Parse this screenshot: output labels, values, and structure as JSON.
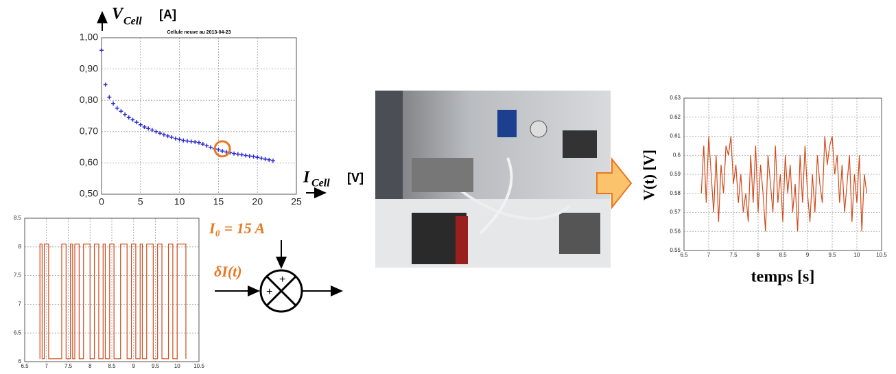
{
  "chart_data": [
    {
      "type": "scatter",
      "subtitle": "Cellule neuve au 2013-04-23",
      "ylabel": "V",
      "ylabel_subscript": "Cell",
      "ylabel_unit": "[A]",
      "xlabel": "I",
      "xlabel_subscript": "Cell",
      "xlabel_unit": "[V]",
      "color": "#2a2ad0",
      "x": [
        0,
        0.5,
        1,
        1.5,
        2,
        2.5,
        3,
        3.5,
        4,
        4.5,
        5,
        5.5,
        6,
        6.5,
        7,
        7.5,
        8,
        8.5,
        9,
        9.5,
        10,
        10.5,
        11,
        11.5,
        12,
        12.5,
        13,
        13.5,
        14,
        14.5,
        15,
        15.5,
        16,
        16.5,
        17,
        17.5,
        18,
        18.5,
        19,
        19.5,
        20,
        20.5,
        21,
        21.5,
        22
      ],
      "values": [
        0.96,
        0.85,
        0.81,
        0.79,
        0.775,
        0.765,
        0.755,
        0.745,
        0.738,
        0.73,
        0.722,
        0.715,
        0.71,
        0.705,
        0.7,
        0.695,
        0.69,
        0.686,
        0.682,
        0.678,
        0.675,
        0.672,
        0.67,
        0.668,
        0.667,
        0.665,
        0.66,
        0.655,
        0.65,
        0.645,
        0.642,
        0.638,
        0.635,
        0.633,
        0.63,
        0.628,
        0.626,
        0.624,
        0.622,
        0.62,
        0.618,
        0.615,
        0.612,
        0.61,
        0.607
      ],
      "highlight": {
        "x": 15.5,
        "y": 0.645,
        "color": "#e87722"
      },
      "xlim": [
        0,
        25
      ],
      "xticks": [
        0,
        5,
        10,
        15,
        20,
        25
      ],
      "ylim": [
        0.5,
        1.0
      ],
      "yticks": [
        {
          "value": 0.5,
          "label": "0,50"
        },
        {
          "value": 0.6,
          "label": "0,60"
        },
        {
          "value": 0.7,
          "label": "0,70"
        },
        {
          "value": 0.8,
          "label": "0,80"
        },
        {
          "value": 0.9,
          "label": "0,90"
        },
        {
          "value": 1.0,
          "label": "1,00"
        }
      ],
      "grid": true
    },
    {
      "type": "line",
      "color": "#d04a1a",
      "x": [
        6.85,
        6.85,
        6.9,
        6.9,
        6.95,
        6.95,
        7.05,
        7.05,
        7.35,
        7.35,
        7.45,
        7.45,
        7.55,
        7.55,
        7.6,
        7.6,
        7.65,
        7.65,
        7.75,
        7.75,
        7.85,
        7.85,
        8.0,
        8.0,
        8.1,
        8.1,
        8.2,
        8.2,
        8.3,
        8.3,
        8.35,
        8.35,
        8.45,
        8.45,
        8.55,
        8.55,
        8.7,
        8.7,
        8.85,
        8.85,
        8.95,
        8.95,
        9.05,
        9.05,
        9.15,
        9.15,
        9.2,
        9.2,
        9.3,
        9.3,
        9.45,
        9.45,
        9.55,
        9.55,
        9.65,
        9.65,
        9.8,
        9.8,
        9.9,
        9.9,
        10.0,
        10.0,
        10.2,
        10.2
      ],
      "values": [
        6.05,
        8.05,
        8.05,
        6.05,
        6.05,
        8.05,
        8.05,
        6.05,
        6.05,
        8.05,
        8.05,
        6.05,
        6.05,
        8.05,
        8.05,
        6.05,
        6.05,
        8.05,
        8.05,
        6.05,
        6.05,
        8.05,
        8.05,
        6.05,
        6.05,
        8.05,
        8.05,
        6.05,
        6.05,
        8.05,
        8.05,
        6.05,
        6.05,
        8.05,
        8.05,
        6.05,
        6.05,
        8.05,
        8.05,
        6.05,
        6.05,
        8.05,
        8.05,
        6.05,
        6.05,
        8.05,
        8.05,
        6.05,
        6.05,
        8.05,
        8.05,
        6.05,
        6.05,
        8.05,
        8.05,
        6.05,
        6.05,
        8.05,
        8.05,
        6.05,
        6.05,
        8.05,
        8.05,
        6.05
      ],
      "xlim": [
        6.5,
        10.5
      ],
      "xticks": [
        6.5,
        7,
        7.5,
        8,
        8.5,
        9,
        9.5,
        10,
        10.5
      ],
      "ylim": [
        6,
        8.5
      ],
      "yticks": [
        6,
        6.5,
        7,
        7.5,
        8,
        8.5
      ],
      "grid": true
    },
    {
      "type": "line",
      "color": "#d04a1a",
      "ylabel": "V(t)  [V]",
      "xlabel": "temps [s]",
      "x": [
        6.85,
        6.9,
        6.95,
        7,
        7.05,
        7.1,
        7.15,
        7.2,
        7.25,
        7.3,
        7.35,
        7.4,
        7.45,
        7.5,
        7.55,
        7.6,
        7.65,
        7.7,
        7.75,
        7.8,
        7.85,
        7.9,
        7.95,
        8,
        8.05,
        8.1,
        8.15,
        8.2,
        8.25,
        8.3,
        8.35,
        8.4,
        8.45,
        8.5,
        8.55,
        8.6,
        8.65,
        8.7,
        8.75,
        8.8,
        8.85,
        8.9,
        8.95,
        9,
        9.05,
        9.1,
        9.15,
        9.2,
        9.25,
        9.3,
        9.35,
        9.4,
        9.45,
        9.5,
        9.55,
        9.6,
        9.65,
        9.7,
        9.75,
        9.8,
        9.85,
        9.9,
        9.95,
        10,
        10.05,
        10.1,
        10.15,
        10.2
      ],
      "values": [
        0.58,
        0.605,
        0.575,
        0.61,
        0.59,
        0.57,
        0.6,
        0.565,
        0.595,
        0.58,
        0.605,
        0.6,
        0.61,
        0.585,
        0.595,
        0.575,
        0.59,
        0.57,
        0.58,
        0.565,
        0.6,
        0.575,
        0.605,
        0.57,
        0.595,
        0.58,
        0.56,
        0.6,
        0.585,
        0.57,
        0.605,
        0.575,
        0.59,
        0.565,
        0.6,
        0.58,
        0.595,
        0.57,
        0.585,
        0.56,
        0.6,
        0.575,
        0.605,
        0.58,
        0.565,
        0.59,
        0.57,
        0.6,
        0.585,
        0.575,
        0.61,
        0.595,
        0.605,
        0.61,
        0.59,
        0.6,
        0.575,
        0.595,
        0.57,
        0.585,
        0.6,
        0.565,
        0.59,
        0.575,
        0.6,
        0.56,
        0.59,
        0.58
      ],
      "xlim": [
        6.5,
        10.5
      ],
      "xticks": [
        6.5,
        7,
        7.5,
        8,
        8.5,
        9,
        9.5,
        10,
        10.5
      ],
      "ylim": [
        0.55,
        0.63
      ],
      "yticks": [
        0.55,
        0.56,
        0.57,
        0.58,
        0.59,
        0.6,
        0.61,
        0.62,
        0.63
      ],
      "grid": true
    }
  ],
  "diagram": {
    "setpoint": "I₀ = 15 A",
    "perturbation": "δI(t)",
    "plus_top": "+",
    "plus_left": "+"
  }
}
